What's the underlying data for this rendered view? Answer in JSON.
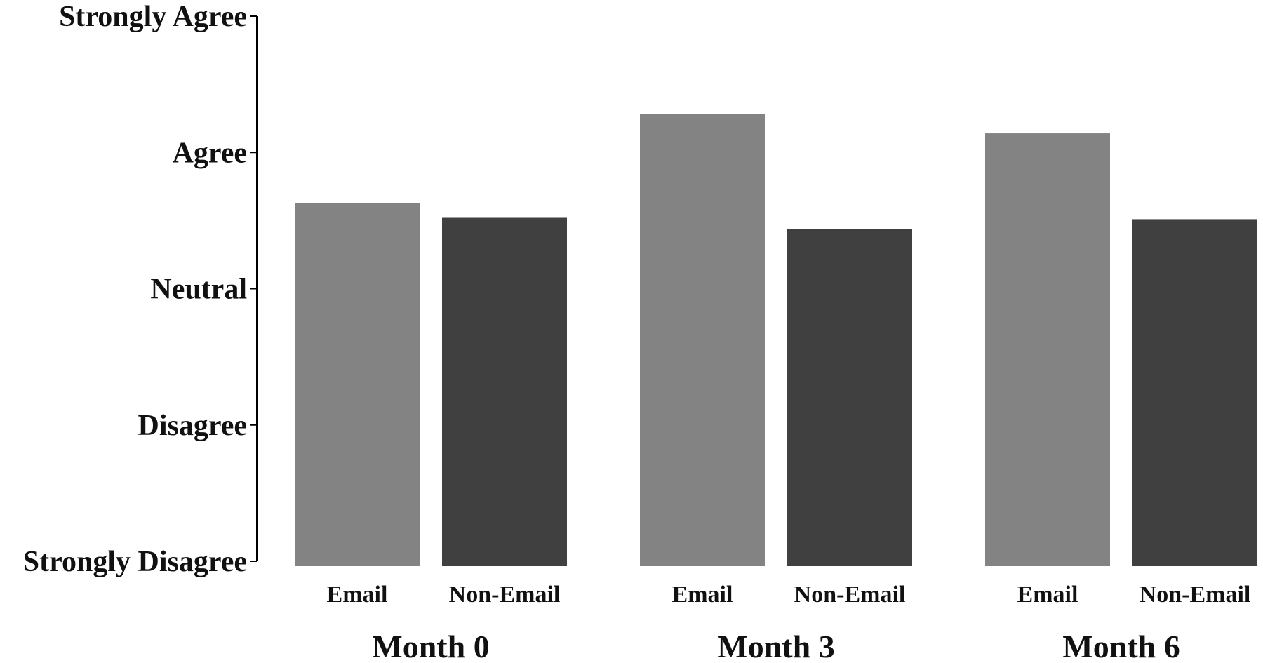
{
  "chart_data": {
    "type": "bar",
    "title": "",
    "xlabel": "",
    "ylabel": "",
    "ylim": [
      1,
      5
    ],
    "yticks": [
      {
        "value": 5,
        "label": "Strongly Agree"
      },
      {
        "value": 4,
        "label": "Agree"
      },
      {
        "value": 3,
        "label": "Neutral"
      },
      {
        "value": 2,
        "label": "Disagree"
      },
      {
        "value": 1,
        "label": "Strongly Disagree"
      }
    ],
    "categories": [
      "Month 0",
      "Month 3",
      "Month 6"
    ],
    "series": [
      {
        "name": "Email",
        "color": "#838383",
        "values": [
          3.63,
          4.28,
          4.14
        ]
      },
      {
        "name": "Non-Email",
        "color": "#404040",
        "values": [
          3.52,
          3.44,
          3.51
        ]
      }
    ],
    "grid": false,
    "legend": "none"
  }
}
